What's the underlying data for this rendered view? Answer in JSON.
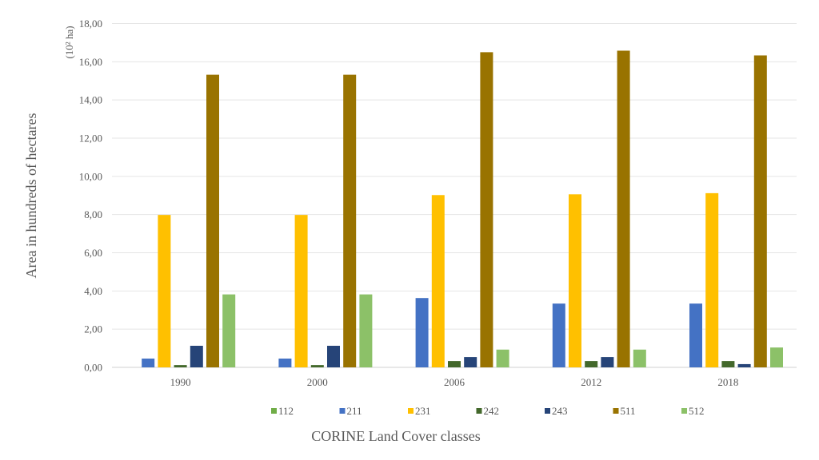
{
  "chart_data": {
    "type": "bar",
    "title": "",
    "xlabel": "CORINE Land Cover classes",
    "ylabel": "Area in hundreds of hectares",
    "y_unit_label": "(10² ha)",
    "ylim": [
      0,
      18
    ],
    "y_ticks": [
      "0,00",
      "2,00",
      "4,00",
      "6,00",
      "8,00",
      "10,00",
      "12,00",
      "14,00",
      "16,00",
      "18,00"
    ],
    "grid": true,
    "legend_position": "bottom",
    "categories": [
      "1990",
      "2000",
      "2006",
      "2012",
      "2018"
    ],
    "series": [
      {
        "name": "112",
        "color": "#70AD47",
        "values": [
          0,
          0,
          0,
          0,
          0
        ]
      },
      {
        "name": "211",
        "color": "#4472C4",
        "values": [
          0.46,
          0.46,
          3.63,
          3.34,
          3.34
        ]
      },
      {
        "name": "231",
        "color": "#FFC000",
        "values": [
          7.98,
          7.98,
          9.02,
          9.06,
          9.12
        ]
      },
      {
        "name": "242",
        "color": "#43682B",
        "values": [
          0.12,
          0.12,
          0.33,
          0.33,
          0.33
        ]
      },
      {
        "name": "243",
        "color": "#264478",
        "values": [
          1.13,
          1.13,
          0.54,
          0.54,
          0.17
        ]
      },
      {
        "name": "511",
        "color": "#997300",
        "values": [
          15.32,
          15.32,
          16.5,
          16.58,
          16.33
        ]
      },
      {
        "name": "512",
        "color": "#8CC168",
        "values": [
          3.82,
          3.82,
          0.93,
          0.93,
          1.04
        ]
      }
    ]
  }
}
